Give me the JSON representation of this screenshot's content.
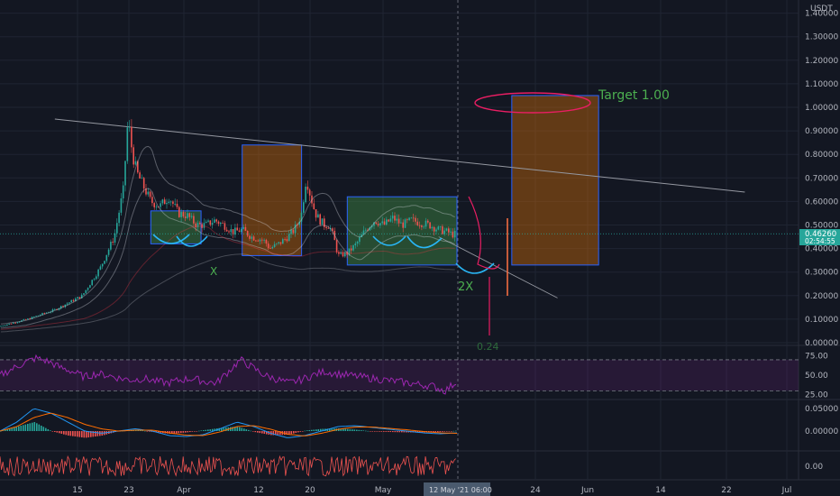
{
  "currency": "USDT",
  "price_label": "0.46260",
  "countdown_label": "02:54:55",
  "crosshair_label": "12 May '21  06:00",
  "colors": {
    "background": "#131722",
    "grid": "#1f2432",
    "up": "#26a69a",
    "down": "#ef5350",
    "orange_box": "#f57c00",
    "green_box": "#4caf50",
    "rsi": "#9c27b0",
    "price_tag": "#26a69a",
    "trendline": "#9598a1",
    "annotation": "#e91e63"
  },
  "annotations": {
    "target": "Target 1.00",
    "x_mark": "X",
    "two_x": "2X",
    "bottom_label": "0.24"
  },
  "x_ticks": [
    "15",
    "23",
    "Apr",
    "12",
    "20",
    "May",
    "24",
    "Jun",
    "14",
    "22",
    "Jul"
  ],
  "chart_data": [
    {
      "type": "candlestick",
      "yscale": "linear",
      "ylim": [
        0,
        1.45
      ],
      "y_ticks": [
        0.0,
        0.1,
        0.2,
        0.3,
        0.4,
        0.5,
        0.6,
        0.7,
        0.8,
        0.9,
        1.0,
        1.1,
        1.2,
        1.3,
        1.4
      ],
      "y_tick_labels": [
        "0.00000",
        "0.10000",
        "0.20000",
        "0.30000",
        "0.40000",
        "0.50000",
        "0.60000",
        "0.70000",
        "0.80000",
        "0.90000",
        "1.00000",
        "1.10000",
        "1.20000",
        "1.30000",
        "1.40000"
      ],
      "last_price": 0.4626,
      "price_path": [
        [
          0,
          0.07
        ],
        [
          6,
          0.1
        ],
        [
          12,
          0.14
        ],
        [
          18,
          0.2
        ],
        [
          22,
          0.32
        ],
        [
          25,
          0.45
        ],
        [
          27,
          0.65
        ],
        [
          28,
          0.95
        ],
        [
          29,
          0.8
        ],
        [
          30,
          0.72
        ],
        [
          31,
          0.68
        ],
        [
          33,
          0.6
        ],
        [
          35,
          0.58
        ],
        [
          37,
          0.62
        ],
        [
          39,
          0.55
        ],
        [
          41,
          0.54
        ],
        [
          43,
          0.5
        ],
        [
          45,
          0.5
        ],
        [
          47,
          0.52
        ],
        [
          49,
          0.5
        ],
        [
          51,
          0.47
        ],
        [
          53,
          0.48
        ],
        [
          55,
          0.45
        ],
        [
          57,
          0.44
        ],
        [
          58,
          0.43
        ],
        [
          59,
          0.4
        ],
        [
          61,
          0.42
        ],
        [
          63,
          0.45
        ],
        [
          64,
          0.47
        ],
        [
          65,
          0.5
        ],
        [
          66,
          0.55
        ],
        [
          67,
          0.7
        ],
        [
          68,
          0.62
        ],
        [
          69,
          0.55
        ],
        [
          70,
          0.52
        ],
        [
          71,
          0.5
        ],
        [
          72,
          0.5
        ],
        [
          73,
          0.45
        ],
        [
          74,
          0.37
        ],
        [
          76,
          0.38
        ],
        [
          78,
          0.42
        ],
        [
          80,
          0.48
        ],
        [
          82,
          0.52
        ],
        [
          84,
          0.5
        ],
        [
          86,
          0.53
        ],
        [
          88,
          0.5
        ],
        [
          90,
          0.52
        ],
        [
          92,
          0.51
        ],
        [
          94,
          0.5
        ],
        [
          96,
          0.48
        ],
        [
          98,
          0.47
        ],
        [
          99,
          0.46
        ],
        [
          100,
          0.4626
        ]
      ],
      "boxes": [
        {
          "color": "green",
          "x0": 33,
          "x1": 44,
          "y0": 0.42,
          "y1": 0.56
        },
        {
          "color": "orange",
          "x0": 53,
          "x1": 66,
          "y0": 0.37,
          "y1": 0.84
        },
        {
          "color": "green",
          "x0": 76,
          "x1": 100,
          "y0": 0.33,
          "y1": 0.62
        },
        {
          "color": "orange",
          "x0": 112,
          "x1": 131,
          "y0": 0.33,
          "y1": 1.05
        }
      ],
      "trendline": [
        [
          12,
          0.95
        ],
        [
          163,
          0.64
        ]
      ]
    },
    {
      "type": "line",
      "name": "RSI",
      "ylim": [
        20,
        85
      ],
      "y_ticks": [
        25,
        50,
        75
      ],
      "y_tick_labels": [
        "25.00",
        "50.00",
        "75.00"
      ],
      "values": [
        50,
        58,
        66,
        72,
        68,
        60,
        55,
        48,
        52,
        50,
        46,
        44,
        46,
        42,
        40,
        44,
        46,
        42,
        40,
        55,
        70,
        60,
        50,
        45,
        40,
        44,
        50,
        55,
        52,
        50,
        48,
        46,
        44,
        42,
        40,
        38,
        36,
        30,
        42
      ]
    },
    {
      "type": "line",
      "name": "MACD",
      "y_ticks": [
        0.0,
        0.05
      ],
      "y_tick_labels": [
        "0.00000",
        "0.05000"
      ],
      "macd": [
        0,
        0.02,
        0.05,
        0.04,
        0.02,
        0.0,
        -0.005,
        0.0,
        0.005,
        0.0,
        -0.01,
        -0.012,
        -0.008,
        0.005,
        0.02,
        0.01,
        -0.005,
        -0.015,
        -0.01,
        0.0,
        0.01,
        0.012,
        0.008,
        0.004,
        0.0,
        -0.004,
        -0.006,
        -0.004
      ],
      "signal": [
        0,
        0.01,
        0.03,
        0.04,
        0.03,
        0.015,
        0.005,
        0.0,
        0.002,
        0.002,
        -0.004,
        -0.009,
        -0.01,
        -0.002,
        0.01,
        0.012,
        0.004,
        -0.007,
        -0.011,
        -0.005,
        0.004,
        0.009,
        0.009,
        0.006,
        0.003,
        -0.001,
        -0.004,
        -0.005
      ]
    },
    {
      "type": "line",
      "name": "oscillator",
      "y_ticks": [
        0.0
      ],
      "y_tick_labels": [
        "0.00"
      ]
    }
  ]
}
